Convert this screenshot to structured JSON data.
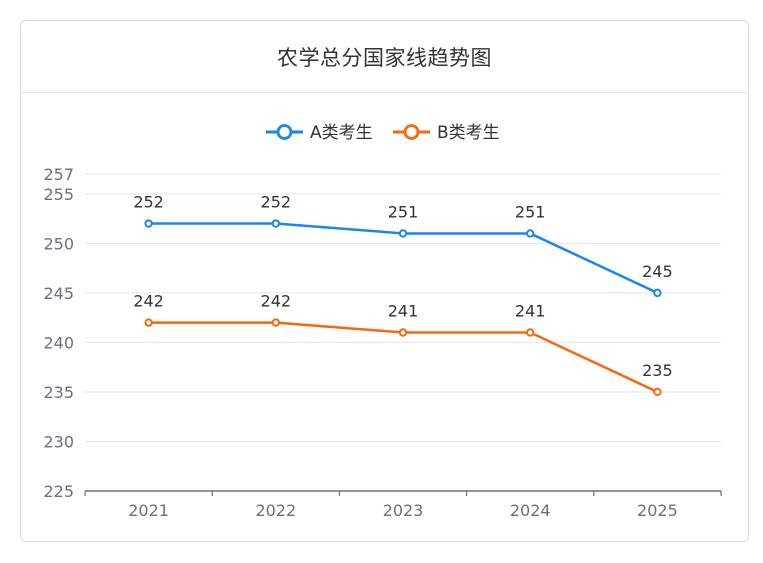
{
  "card": {
    "title": "农学总分国家线趋势图"
  },
  "legend": [
    {
      "label": "A类考生",
      "color": "#1a86f0",
      "icon": "line-circle-marker-icon"
    },
    {
      "label": "B类考生",
      "color": "#f56a0f",
      "icon": "line-circle-marker-icon"
    }
  ],
  "colors": {
    "series_a": "#1a86f0",
    "series_b": "#f56a0f",
    "grid": "#e0e6f1",
    "axis": "#6e7079",
    "border": "#dcdcdc"
  },
  "chart_data": {
    "type": "line",
    "title": "农学总分国家线趋势图",
    "xlabel": "",
    "ylabel": "",
    "categories": [
      "2021",
      "2022",
      "2023",
      "2024",
      "2025"
    ],
    "series": [
      {
        "name": "A类考生",
        "values": [
          252,
          252,
          251,
          251,
          245
        ]
      },
      {
        "name": "B类考生",
        "values": [
          242,
          242,
          241,
          241,
          235
        ]
      }
    ],
    "ylim": [
      225,
      257
    ],
    "yticks": [
      "225",
      "230",
      "235",
      "240",
      "245",
      "250",
      "255",
      "257"
    ],
    "grid": true,
    "legend_position": "top",
    "data_labels": true
  }
}
